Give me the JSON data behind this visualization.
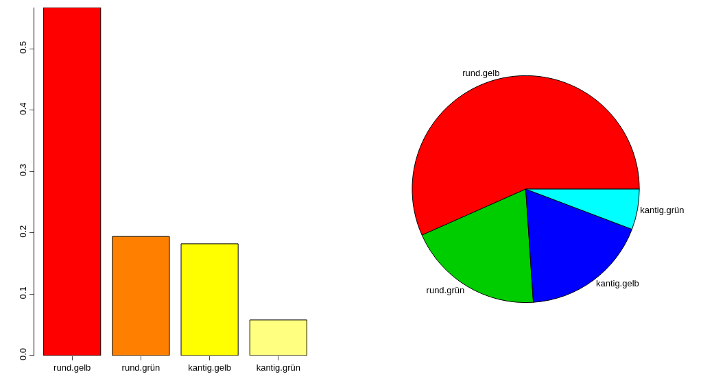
{
  "chart_data": [
    {
      "type": "bar",
      "categories": [
        "rund.gelb",
        "rund.grün",
        "kantig.gelb",
        "kantig.grün"
      ],
      "values": [
        0.567,
        0.194,
        0.182,
        0.058
      ],
      "colors": [
        "#ff0000",
        "#ff8000",
        "#ffff00",
        "#ffff80"
      ],
      "ylim": [
        0,
        0.567
      ],
      "yticks": [
        {
          "value": 0,
          "label": "0.0"
        },
        0.1,
        0.2,
        0.3,
        0.4,
        0.5
      ],
      "legend": false
    },
    {
      "type": "pie",
      "categories": [
        "rund.gelb",
        "rund.grün",
        "kantig.gelb",
        "kantig.grün"
      ],
      "values": [
        56.65,
        19.42,
        18.17,
        5.76
      ],
      "colors": [
        "#ff0000",
        "#00cd00",
        "#0000ff",
        "#00ffff"
      ],
      "legend": false
    }
  ]
}
